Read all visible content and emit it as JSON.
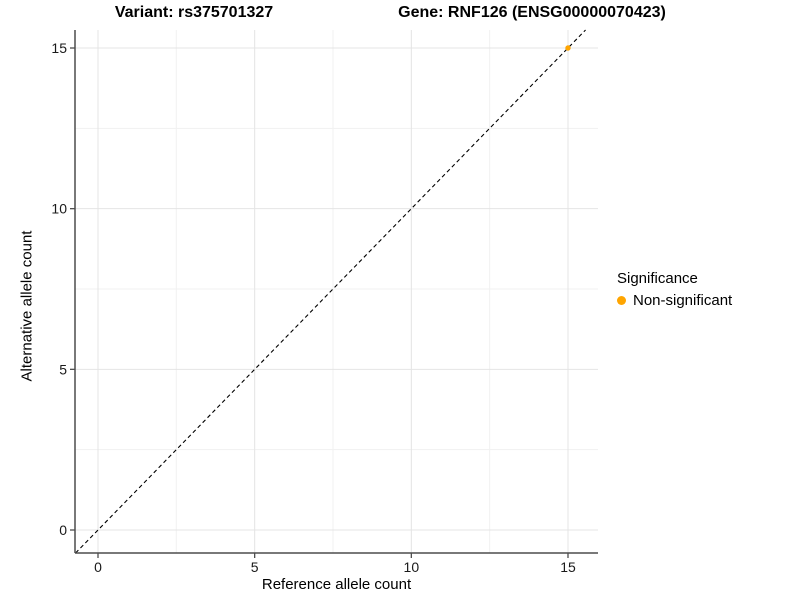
{
  "chart_data": {
    "type": "scatter",
    "title_left": "Variant: rs375701327",
    "title_right": "Gene: RNF126 (ENSG00000070423)",
    "xlabel": "Reference allele count",
    "ylabel": "Alternative allele count",
    "xlim": [
      -0.75,
      15.75
    ],
    "ylim": [
      -0.75,
      15.75
    ],
    "xticks": [
      0,
      5,
      10,
      15
    ],
    "yticks": [
      0,
      5,
      10,
      15
    ],
    "xminor": [
      2.5,
      7.5,
      12.5
    ],
    "yminor": [
      2.5,
      7.5,
      12.5
    ],
    "grid": true,
    "series": [
      {
        "name": "Non-significant",
        "color": "#FFA500",
        "points": [
          {
            "x": 15,
            "y": 15
          }
        ]
      }
    ],
    "reference_line": {
      "type": "identity",
      "slope": 1,
      "intercept": 0,
      "style": "dashed",
      "color": "#000000"
    },
    "legend": {
      "title": "Significance",
      "position": "right",
      "entries": [
        {
          "label": "Non-significant",
          "color": "#FFA500"
        }
      ]
    }
  },
  "colors": {
    "background": "#FFFFFF",
    "grid_major": "#E4E4E4",
    "grid_minor": "#F1F1F1",
    "axis_line": "#4D4D4D",
    "tick_label": "#1A1A1A",
    "dashed_line": "#000000"
  }
}
